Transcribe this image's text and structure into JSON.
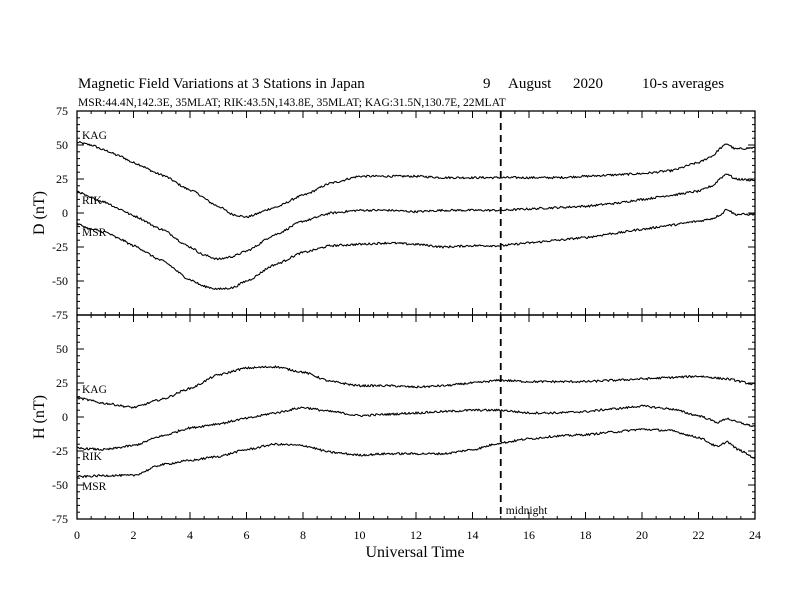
{
  "header": {
    "title": "Magnetic Field Variations at 3 Stations in Japan",
    "date_day": "9",
    "date_month": "August",
    "date_year": "2020",
    "averaging": "10-s averages",
    "stations": "MSR:44.4N,142.3E, 35MLAT;  RIK:43.5N,143.8E, 35MLAT;  KAG:31.5N,130.7E, 22MLAT"
  },
  "midnight_label": "midnight",
  "chart_data": [
    {
      "type": "line",
      "panel": "top",
      "ylabel": "D (nT)",
      "ylim": [
        -75,
        75
      ],
      "yticks": [
        75,
        50,
        25,
        0,
        -25,
        -50,
        -75
      ],
      "xlim": [
        0,
        24
      ],
      "xticks": [
        0,
        2,
        4,
        6,
        8,
        10,
        12,
        14,
        16,
        18,
        20,
        22,
        24
      ],
      "vline_x": 15,
      "series": [
        {
          "name": "KAG",
          "x": [
            0,
            0.5,
            1,
            1.5,
            2,
            3,
            4,
            5,
            5.5,
            6,
            7,
            8,
            9,
            10,
            11,
            12,
            13,
            14,
            15,
            16,
            17,
            18,
            19,
            20,
            21,
            22,
            22.5,
            22.8,
            23,
            23.3,
            24
          ],
          "values": [
            52,
            50,
            46,
            42,
            37,
            28,
            17,
            5,
            -1,
            -3,
            4,
            13,
            22,
            27,
            27,
            27,
            26,
            26,
            26,
            26,
            26,
            27,
            28,
            29,
            31,
            37,
            42,
            48,
            51,
            47,
            48
          ]
        },
        {
          "name": "RIK",
          "x": [
            0,
            0.5,
            1,
            1.5,
            2,
            3,
            4,
            4.5,
            5,
            5.5,
            6,
            7,
            8,
            9,
            10,
            11,
            12,
            13,
            14,
            15,
            16,
            17,
            18,
            19,
            20,
            21,
            22,
            22.5,
            22.8,
            23,
            23.3,
            24
          ],
          "values": [
            16,
            11,
            8,
            3,
            -2,
            -12,
            -25,
            -31,
            -34,
            -32,
            -28,
            -16,
            -6,
            0,
            2,
            2,
            1,
            2,
            2,
            2,
            3,
            4,
            5,
            7,
            10,
            13,
            16,
            20,
            26,
            29,
            25,
            24
          ]
        },
        {
          "name": "MSR",
          "x": [
            0,
            0.5,
            1,
            1.5,
            2,
            3,
            4,
            4.5,
            5,
            5.5,
            6,
            7,
            8,
            9,
            10,
            11,
            12,
            13,
            14,
            15,
            16,
            17,
            18,
            19,
            20,
            21,
            22,
            22.5,
            22.8,
            23,
            23.3,
            24
          ],
          "values": [
            -8,
            -12,
            -14,
            -19,
            -24,
            -35,
            -49,
            -54,
            -56,
            -55,
            -50,
            -38,
            -29,
            -24,
            -23,
            -22,
            -23,
            -25,
            -24,
            -24,
            -22,
            -20,
            -18,
            -15,
            -12,
            -9,
            -6,
            -4,
            -1,
            3,
            -1,
            -1
          ]
        }
      ]
    },
    {
      "type": "line",
      "panel": "bottom",
      "ylabel": "H (nT)",
      "xlabel": "Universal Time",
      "ylim": [
        -75,
        75
      ],
      "yticks": [
        50,
        25,
        0,
        -25,
        -50,
        -75
      ],
      "xlim": [
        0,
        24
      ],
      "xticks": [
        0,
        2,
        4,
        6,
        8,
        10,
        12,
        14,
        16,
        18,
        20,
        22,
        24
      ],
      "vline_x": 15,
      "series": [
        {
          "name": "KAG",
          "x": [
            0,
            1,
            2,
            3,
            4,
            5,
            6,
            7,
            8,
            9,
            10,
            11,
            12,
            13,
            14,
            15,
            16,
            17,
            18,
            19,
            20,
            21,
            22,
            23,
            24
          ],
          "values": [
            14,
            10,
            7,
            13,
            21,
            31,
            36,
            37,
            33,
            26,
            23,
            23,
            22,
            23,
            25,
            27,
            26,
            26,
            26,
            27,
            28,
            29,
            30,
            28,
            24
          ]
        },
        {
          "name": "RIK",
          "x": [
            0,
            1,
            2,
            3,
            4,
            5,
            6,
            7,
            8,
            9,
            10,
            11,
            12,
            13,
            14,
            15,
            16,
            17,
            18,
            19,
            20,
            21,
            22,
            22.7,
            23,
            23.4,
            24
          ],
          "values": [
            -23,
            -24,
            -21,
            -14,
            -8,
            -5,
            -1,
            3,
            7,
            4,
            1,
            2,
            3,
            4,
            5,
            5,
            3,
            3,
            4,
            6,
            8,
            6,
            1,
            -4,
            -1,
            -4,
            -7
          ]
        },
        {
          "name": "MSR",
          "x": [
            0,
            1,
            2,
            3,
            4,
            5,
            6,
            7,
            8,
            9,
            10,
            11,
            12,
            13,
            14,
            15,
            16,
            17,
            18,
            19,
            20,
            21,
            22,
            22.7,
            23,
            23.4,
            24
          ],
          "values": [
            -44,
            -43,
            -43,
            -35,
            -32,
            -29,
            -24,
            -20,
            -21,
            -26,
            -28,
            -27,
            -27,
            -27,
            -24,
            -19,
            -16,
            -14,
            -13,
            -11,
            -9,
            -10,
            -15,
            -22,
            -18,
            -24,
            -30
          ]
        }
      ]
    }
  ]
}
